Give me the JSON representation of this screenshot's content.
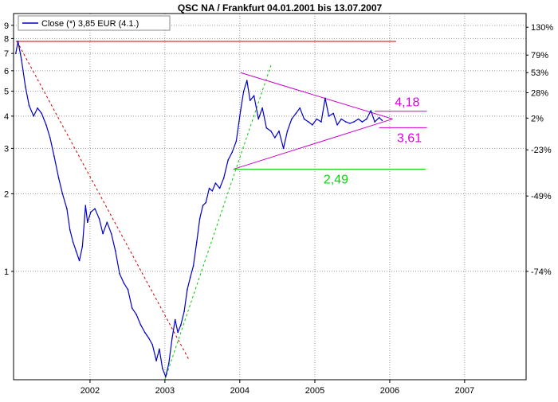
{
  "chart_data": {
    "type": "line",
    "title": "QSC NA / Frankfurt 04.01.2001  bis 13.07.2007",
    "legend": {
      "label": "Close (*) 3,85 EUR (4.1.)",
      "placement": "top-left"
    },
    "y_scale": "log",
    "ylim": [
      0.38,
      10
    ],
    "x_range": [
      "2001-01-04",
      "2007-07-13"
    ],
    "grid": true,
    "x_ticks": [
      "2002",
      "2003",
      "2004",
      "2005",
      "2006",
      "2007"
    ],
    "y_ticks_left": [
      {
        "label": "9",
        "value": 9
      },
      {
        "label": "8",
        "value": 8
      },
      {
        "label": "7",
        "value": 7
      },
      {
        "label": "6",
        "value": 6
      },
      {
        "label": "5",
        "value": 5
      },
      {
        "label": "4",
        "value": 4
      },
      {
        "label": "3",
        "value": 3
      },
      {
        "label": "2",
        "value": 2
      },
      {
        "label": "1",
        "value": 1
      }
    ],
    "y_ticks_right": [
      {
        "label": "130%",
        "value": 8.85
      },
      {
        "label": "79%",
        "value": 6.9
      },
      {
        "label": "53%",
        "value": 5.9
      },
      {
        "label": "28%",
        "value": 4.93
      },
      {
        "label": "2%",
        "value": 3.93
      },
      {
        "label": "-23%",
        "value": 2.96
      },
      {
        "label": "-49%",
        "value": 1.96
      },
      {
        "label": "-74%",
        "value": 1.0
      }
    ],
    "series": [
      {
        "name": "Close (*) 3,85 EUR (4.1.)",
        "color": "#0000cc",
        "points": [
          [
            "2001-01-04",
            7.0
          ],
          [
            "2001-01-15",
            7.8
          ],
          [
            "2001-02-01",
            6.6
          ],
          [
            "2001-02-20",
            5.2
          ],
          [
            "2001-03-10",
            4.4
          ],
          [
            "2001-04-01",
            4.0
          ],
          [
            "2001-04-20",
            4.3
          ],
          [
            "2001-05-10",
            4.1
          ],
          [
            "2001-06-01",
            3.7
          ],
          [
            "2001-06-20",
            3.3
          ],
          [
            "2001-07-10",
            2.8
          ],
          [
            "2001-08-01",
            2.3
          ],
          [
            "2001-08-20",
            2.0
          ],
          [
            "2001-09-10",
            1.75
          ],
          [
            "2001-09-25",
            1.45
          ],
          [
            "2001-10-10",
            1.3
          ],
          [
            "2001-10-25",
            1.2
          ],
          [
            "2001-11-10",
            1.1
          ],
          [
            "2001-11-25",
            1.25
          ],
          [
            "2001-12-10",
            1.8
          ],
          [
            "2001-12-20",
            1.55
          ],
          [
            "2002-01-05",
            1.7
          ],
          [
            "2002-01-25",
            1.75
          ],
          [
            "2002-02-15",
            1.6
          ],
          [
            "2002-03-05",
            1.4
          ],
          [
            "2002-03-25",
            1.55
          ],
          [
            "2002-04-15",
            1.4
          ],
          [
            "2002-05-05",
            1.2
          ],
          [
            "2002-05-25",
            0.98
          ],
          [
            "2002-06-15",
            0.9
          ],
          [
            "2002-07-05",
            0.85
          ],
          [
            "2002-07-25",
            0.72
          ],
          [
            "2002-08-15",
            0.68
          ],
          [
            "2002-09-05",
            0.62
          ],
          [
            "2002-09-25",
            0.58
          ],
          [
            "2002-10-15",
            0.55
          ],
          [
            "2002-11-01",
            0.52
          ],
          [
            "2002-11-20",
            0.45
          ],
          [
            "2002-12-05",
            0.5
          ],
          [
            "2002-12-20",
            0.42
          ],
          [
            "2003-01-05",
            0.39
          ],
          [
            "2003-01-20",
            0.44
          ],
          [
            "2003-02-05",
            0.55
          ],
          [
            "2003-02-20",
            0.65
          ],
          [
            "2003-03-05",
            0.58
          ],
          [
            "2003-03-20",
            0.62
          ],
          [
            "2003-04-05",
            0.7
          ],
          [
            "2003-04-20",
            0.85
          ],
          [
            "2003-05-05",
            0.95
          ],
          [
            "2003-05-20",
            1.05
          ],
          [
            "2003-06-05",
            1.3
          ],
          [
            "2003-06-20",
            1.6
          ],
          [
            "2003-07-05",
            1.8
          ],
          [
            "2003-07-20",
            1.85
          ],
          [
            "2003-08-05",
            2.1
          ],
          [
            "2003-08-20",
            2.05
          ],
          [
            "2003-09-05",
            2.2
          ],
          [
            "2003-09-25",
            2.1
          ],
          [
            "2003-10-15",
            2.3
          ],
          [
            "2003-11-05",
            2.7
          ],
          [
            "2003-11-25",
            2.9
          ],
          [
            "2003-12-15",
            3.2
          ],
          [
            "2004-01-05",
            4.2
          ],
          [
            "2004-01-20",
            5.0
          ],
          [
            "2004-02-05",
            5.5
          ],
          [
            "2004-02-20",
            4.6
          ],
          [
            "2004-03-10",
            4.8
          ],
          [
            "2004-04-01",
            3.9
          ],
          [
            "2004-04-20",
            4.3
          ],
          [
            "2004-05-10",
            3.6
          ],
          [
            "2004-06-01",
            3.5
          ],
          [
            "2004-06-20",
            3.3
          ],
          [
            "2004-07-10",
            3.5
          ],
          [
            "2004-08-01",
            3.0
          ],
          [
            "2004-08-20",
            3.5
          ],
          [
            "2004-09-10",
            3.9
          ],
          [
            "2004-10-01",
            4.1
          ],
          [
            "2004-10-20",
            4.3
          ],
          [
            "2004-11-10",
            3.9
          ],
          [
            "2004-12-01",
            3.8
          ],
          [
            "2004-12-20",
            3.7
          ],
          [
            "2005-01-10",
            3.9
          ],
          [
            "2005-02-01",
            3.8
          ],
          [
            "2005-02-20",
            4.7
          ],
          [
            "2005-03-10",
            4.0
          ],
          [
            "2005-04-01",
            4.1
          ],
          [
            "2005-04-20",
            3.7
          ],
          [
            "2005-05-10",
            3.9
          ],
          [
            "2005-06-01",
            3.8
          ],
          [
            "2005-06-20",
            3.75
          ],
          [
            "2005-07-10",
            3.8
          ],
          [
            "2005-08-01",
            3.9
          ],
          [
            "2005-08-20",
            3.8
          ],
          [
            "2005-09-10",
            3.9
          ],
          [
            "2005-10-01",
            4.2
          ],
          [
            "2005-10-20",
            3.8
          ],
          [
            "2005-11-10",
            3.95
          ],
          [
            "2005-11-25",
            3.85
          ]
        ]
      }
    ],
    "overlays": [
      {
        "kind": "hline",
        "label": "",
        "value": 7.8,
        "from": "2001-01-04",
        "to": "2006-02-01",
        "color": "#cc0000"
      },
      {
        "kind": "trend",
        "style": "dashed",
        "color": "#cc0000",
        "from": [
          "2001-01-10",
          7.8
        ],
        "to": [
          "2003-05-01",
          0.45
        ]
      },
      {
        "kind": "trend",
        "style": "dashed",
        "color": "#00cc00",
        "from": [
          "2003-01-01",
          0.38
        ],
        "to": [
          "2004-06-01",
          6.3
        ]
      },
      {
        "kind": "triangle",
        "color": "#cc00cc",
        "upper_from": [
          "2004-01-05",
          5.9
        ],
        "lower_from": [
          "2003-12-01",
          2.49
        ],
        "apex": [
          "2006-01-15",
          3.9
        ]
      },
      {
        "kind": "hline",
        "label": "4,18",
        "value": 4.18,
        "from": "2005-10-20",
        "to": "2006-07-01",
        "color": "#cc00cc",
        "label_color": "#dd00dd"
      },
      {
        "kind": "hline",
        "label": "3,61",
        "value": 3.61,
        "from": "2005-11-10",
        "to": "2006-07-01",
        "color": "#cc00cc",
        "label_color": "#dd00dd"
      },
      {
        "kind": "hline",
        "label": "2,49",
        "value": 2.49,
        "from": "2003-12-01",
        "to": "2006-06-25",
        "color": "#00cc00",
        "label_color": "#00dd00"
      }
    ]
  }
}
